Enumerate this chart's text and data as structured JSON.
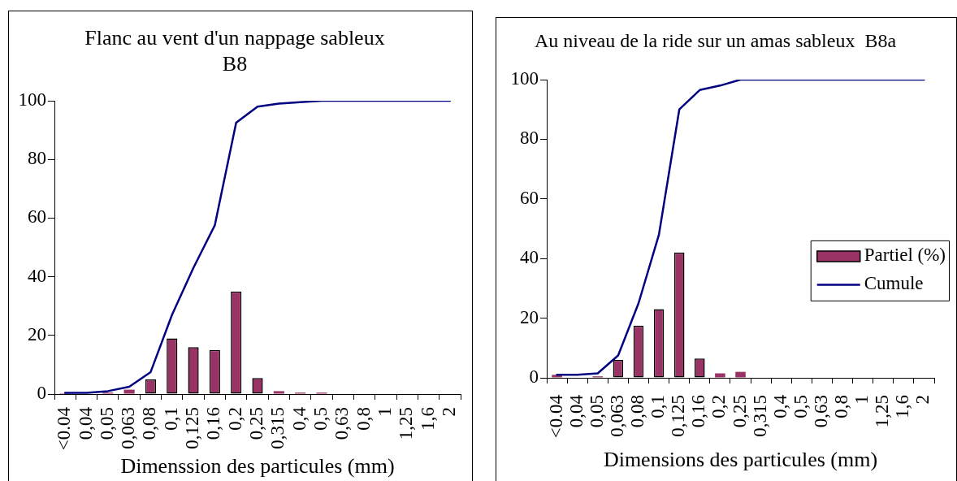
{
  "chart_data": [
    {
      "type": "bar",
      "title": "Flanc au vent d'un nappage sableux\nB8",
      "xlabel": "Dimenssion des particules (mm)",
      "categories": [
        "<0.04",
        "0,04",
        "0,05",
        "0,063",
        "0,08",
        "0,1",
        "0,125",
        "0,16",
        "0,2",
        "0,25",
        "0,315",
        "0,4",
        "0,5",
        "0,63",
        "0,8",
        "1",
        "1,25",
        "1,6",
        "2"
      ],
      "series": [
        {
          "color": "#993366",
          "values": [
            0.3,
            0,
            0.5,
            1.5,
            5,
            19,
            16,
            15,
            35,
            5.5,
            1,
            0.5,
            0.5,
            0,
            0,
            0,
            0,
            0,
            0
          ]
        },
        {
          "type": "line",
          "color": "#000080",
          "values": [
            0.4,
            0.4,
            1,
            2.5,
            7.5,
            27,
            43,
            57.5,
            92.5,
            98,
            99,
            99.5,
            100,
            100,
            100,
            100,
            100,
            100,
            100
          ]
        }
      ],
      "ylim": [
        0,
        100
      ],
      "yticks": [
        0,
        20,
        40,
        60,
        80,
        100
      ],
      "marker": "none"
    },
    {
      "type": "bar",
      "title": "Au niveau de la ride sur un amas sableux  B8a",
      "xlabel": "Dimensions des particules (mm)",
      "categories": [
        "<0.04",
        "0,04",
        "0,05",
        "0,063",
        "0,08",
        "0,1",
        "0,125",
        "0,16",
        "0,2",
        "0,25",
        "0,315",
        "0,4",
        "0,5",
        "0,63",
        "0,8",
        "1",
        "1,25",
        "1,6",
        "2"
      ],
      "series": [
        {
          "name": "Partiel (%)",
          "color": "#993366",
          "values": [
            1,
            0,
            0.5,
            6,
            17.5,
            23,
            42,
            6.5,
            1.5,
            2,
            0,
            0,
            0,
            0,
            0,
            0,
            0,
            0,
            0
          ]
        },
        {
          "type": "line",
          "name": "Cumule",
          "color": "#000080",
          "values": [
            1,
            1,
            1.5,
            7.5,
            25,
            48,
            90,
            96.5,
            98,
            100,
            100,
            100,
            100,
            100,
            100,
            100,
            100,
            100,
            100
          ]
        }
      ],
      "ylim": [
        0,
        100
      ],
      "yticks": [
        0,
        20,
        40,
        60,
        80,
        100
      ],
      "marker": "none",
      "legend": "right"
    }
  ]
}
